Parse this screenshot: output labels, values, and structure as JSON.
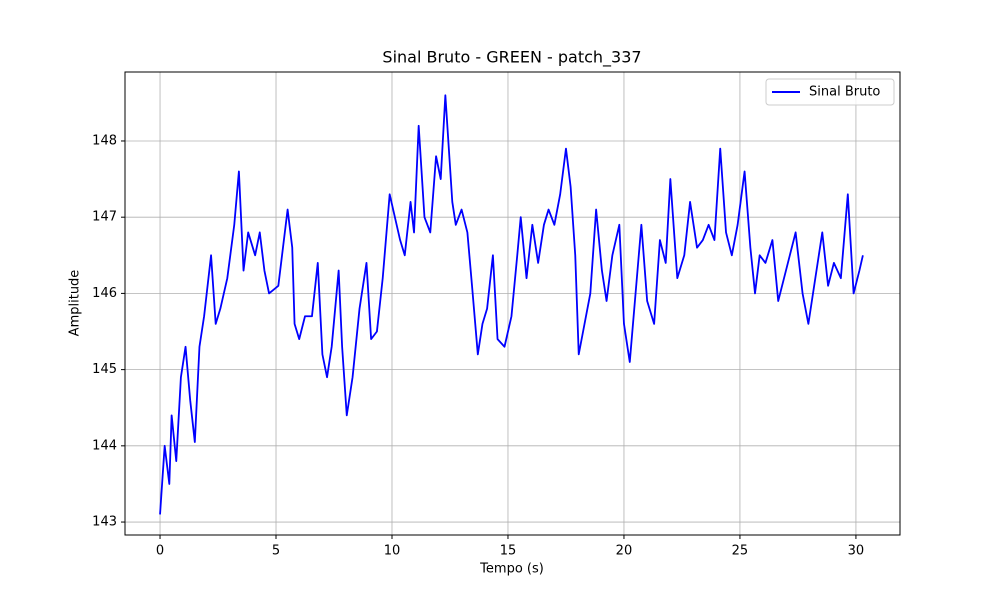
{
  "chart_data": {
    "type": "line",
    "title": "Sinal Bruto - GREEN - patch_337",
    "xlabel": "Tempo (s)",
    "ylabel": "Amplitude",
    "x": [
      0,
      0.2,
      0.4,
      0.5,
      0.7,
      0.9,
      1.1,
      1.3,
      1.5,
      1.7,
      1.9,
      2.2,
      2.4,
      2.6,
      2.9,
      3.2,
      3.4,
      3.6,
      3.8,
      4.1,
      4.3,
      4.5,
      4.7,
      5.1,
      5.3,
      5.5,
      5.7,
      5.8,
      6.0,
      6.25,
      6.55,
      6.8,
      7.0,
      7.2,
      7.4,
      7.7,
      7.85,
      8.05,
      8.3,
      8.6,
      8.9,
      9.1,
      9.35,
      9.6,
      9.9,
      10.2,
      10.35,
      10.55,
      10.8,
      10.95,
      11.15,
      11.4,
      11.65,
      11.9,
      12.1,
      12.3,
      12.6,
      12.75,
      13.0,
      13.25,
      13.45,
      13.7,
      13.9,
      14.1,
      14.35,
      14.55,
      14.85,
      15.15,
      15.4,
      15.55,
      15.8,
      16.05,
      16.3,
      16.55,
      16.75,
      17.0,
      17.25,
      17.5,
      17.7,
      17.9,
      18.05,
      18.3,
      18.55,
      18.8,
      19.05,
      19.25,
      19.5,
      19.8,
      20.0,
      20.25,
      20.5,
      20.75,
      21.0,
      21.3,
      21.55,
      21.8,
      22.0,
      22.3,
      22.6,
      22.85,
      23.15,
      23.4,
      23.65,
      23.9,
      24.15,
      24.4,
      24.65,
      24.9,
      25.2,
      25.45,
      25.65,
      25.85,
      26.1,
      26.4,
      26.65,
      26.9,
      27.15,
      27.4,
      27.7,
      27.95,
      28.25,
      28.55,
      28.8,
      29.05,
      29.35,
      29.65,
      29.9,
      30.15,
      30.3
    ],
    "series": [
      {
        "name": "Sinal Bruto",
        "color": "#0000ff",
        "values": [
          143.1,
          144.0,
          143.5,
          144.4,
          143.8,
          144.9,
          145.3,
          144.6,
          144.05,
          145.3,
          145.7,
          146.5,
          145.6,
          145.8,
          146.2,
          146.9,
          147.6,
          146.3,
          146.8,
          146.5,
          146.8,
          146.3,
          146.0,
          146.1,
          146.6,
          147.1,
          146.6,
          145.6,
          145.4,
          145.7,
          145.7,
          146.4,
          145.2,
          144.9,
          145.3,
          146.3,
          145.3,
          144.4,
          144.9,
          145.8,
          146.4,
          145.4,
          145.5,
          146.2,
          147.3,
          146.9,
          146.7,
          146.5,
          147.2,
          146.8,
          148.2,
          147.0,
          146.8,
          147.8,
          147.5,
          148.6,
          147.2,
          146.9,
          147.1,
          146.8,
          146.1,
          145.2,
          145.6,
          145.8,
          146.5,
          145.4,
          145.3,
          145.7,
          146.5,
          147.0,
          146.2,
          146.9,
          146.4,
          146.9,
          147.1,
          146.9,
          147.3,
          147.9,
          147.4,
          146.5,
          145.2,
          145.6,
          146.0,
          147.1,
          146.3,
          145.9,
          146.5,
          146.9,
          145.6,
          145.1,
          146.0,
          146.9,
          145.9,
          145.6,
          146.7,
          146.4,
          147.5,
          146.2,
          146.5,
          147.2,
          146.6,
          146.7,
          146.9,
          146.7,
          147.9,
          146.8,
          146.5,
          146.9,
          147.6,
          146.6,
          146.0,
          146.5,
          146.4,
          146.7,
          145.9,
          146.2,
          146.5,
          146.8,
          146.0,
          145.6,
          146.2,
          146.8,
          146.1,
          146.4,
          146.2,
          147.3,
          146.0,
          146.3,
          146.5
        ]
      }
    ],
    "xlim": [
      -1.51,
      31.9
    ],
    "ylim": [
      142.83,
      148.905
    ],
    "xticks": [
      0,
      5,
      10,
      15,
      20,
      25,
      30
    ],
    "yticks": [
      143,
      144,
      145,
      146,
      147,
      148
    ],
    "grid": true,
    "legend": "upper right"
  }
}
